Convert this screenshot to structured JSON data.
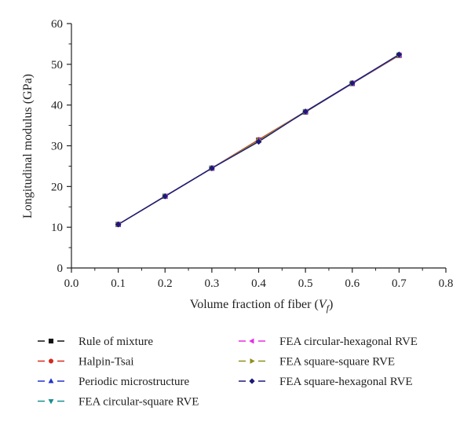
{
  "chart_data": {
    "type": "line",
    "xlabel": "Volume fraction of fiber (",
    "xlabel_symbol": "V",
    "xlabel_subscript": "f",
    "xlabel_close": ")",
    "ylabel": "Longitudinal modulus (GPa)",
    "xlim": [
      0.0,
      0.8
    ],
    "ylim": [
      0,
      60
    ],
    "xticks": [
      "0.0",
      "0.1",
      "0.2",
      "0.3",
      "0.4",
      "0.5",
      "0.6",
      "0.7",
      "0.8"
    ],
    "yticks": [
      "0",
      "10",
      "20",
      "30",
      "40",
      "50",
      "60"
    ],
    "grid": false,
    "legend_position": "bottom",
    "x": [
      0.1,
      0.2,
      0.3,
      0.4,
      0.5,
      0.6,
      0.7
    ],
    "series": [
      {
        "name": "Rule of mixture",
        "color": "#111111",
        "marker": "square",
        "values": [
          10.7,
          17.6,
          24.5,
          31.4,
          38.3,
          45.3,
          52.2
        ]
      },
      {
        "name": "Halpin-Tsai",
        "color": "#d62a1e",
        "marker": "circle",
        "values": [
          10.7,
          17.6,
          24.5,
          31.5,
          38.4,
          45.3,
          52.2
        ]
      },
      {
        "name": "Periodic microstructure",
        "color": "#2233cc",
        "marker": "triangle-up",
        "values": [
          10.7,
          17.6,
          24.5,
          31.3,
          38.4,
          45.3,
          52.3
        ]
      },
      {
        "name": "FEA circular-square RVE",
        "color": "#1a8f8f",
        "marker": "triangle-down",
        "values": [
          10.7,
          17.6,
          24.5,
          31.2,
          38.4,
          45.4,
          52.3
        ]
      },
      {
        "name": "FEA circular-hexagonal RVE",
        "color": "#e52ee5",
        "marker": "triangle-left",
        "values": [
          10.7,
          17.6,
          24.5,
          31.3,
          38.4,
          45.4,
          52.3
        ]
      },
      {
        "name": "FEA square-square RVE",
        "color": "#8f8f1a",
        "marker": "triangle-right",
        "values": [
          10.7,
          17.6,
          24.5,
          31.3,
          38.4,
          45.4,
          52.3
        ]
      },
      {
        "name": "FEA square-hexagonal RVE",
        "color": "#1a1a7a",
        "marker": "diamond",
        "values": [
          10.7,
          17.6,
          24.5,
          31.0,
          38.4,
          45.4,
          52.4
        ]
      }
    ]
  }
}
